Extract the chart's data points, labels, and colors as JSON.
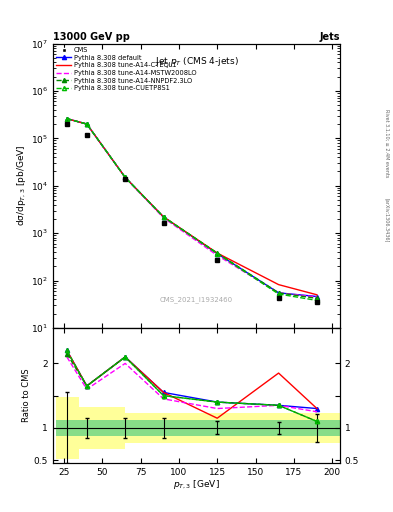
{
  "title_top": "13000 GeV pp",
  "title_right": "Jets",
  "plot_title": "Jet $p_T$ (CMS 4-jets)",
  "watermark": "CMS_2021_I1932460",
  "right_label_top": "Rivet 3.1.10; ≥ 2.4M events",
  "right_label_bot": "[arXiv:1306.3436]",
  "ylabel_main": "dσ/dp$_{T,3}$ [pb/GeV]",
  "ylabel_ratio": "Ratio to CMS",
  "xlabel": "$p_{T,3}$ [GeV]",
  "cms_x": [
    27,
    40,
    65,
    90,
    125,
    165,
    190
  ],
  "cms_y": [
    200000.0,
    120000.0,
    14000.0,
    1600,
    270,
    43,
    35
  ],
  "pt_bins": [
    27,
    40,
    65,
    90,
    125,
    165,
    190
  ],
  "pythia_default_y": [
    260000.0,
    200000.0,
    15000.0,
    2200,
    370,
    55,
    46
  ],
  "pythia_cteql1_y": [
    260000.0,
    200000.0,
    15000.0,
    2200,
    380,
    82,
    50
  ],
  "pythia_mstw_y": [
    260000.0,
    200000.0,
    15000.0,
    2100,
    340,
    55,
    45
  ],
  "pythia_nnpdf_y": [
    260000.0,
    200000.0,
    15000.0,
    2200,
    380,
    55,
    42
  ],
  "pythia_cuetp_y": [
    260000.0,
    200000.0,
    15000.0,
    2200,
    370,
    52,
    38
  ],
  "ratio_x": [
    27,
    40,
    65,
    90,
    125,
    165,
    190
  ],
  "ratio_default": [
    2.2,
    1.65,
    2.1,
    1.55,
    1.4,
    1.35,
    1.3
  ],
  "ratio_cteql1": [
    2.2,
    1.65,
    2.1,
    1.55,
    1.15,
    1.85,
    1.3
  ],
  "ratio_mstw": [
    2.1,
    1.6,
    2.0,
    1.45,
    1.3,
    1.35,
    1.25
  ],
  "ratio_nnpdf": [
    2.15,
    1.65,
    2.1,
    1.5,
    1.4,
    1.35,
    1.1
  ],
  "ratio_cuetp": [
    2.2,
    1.65,
    2.1,
    1.5,
    1.4,
    1.35,
    1.1
  ],
  "cms_err_lo": [
    0.55,
    0.15,
    0.15,
    0.15,
    0.1,
    0.09,
    0.22
  ],
  "cms_err_hi": [
    0.55,
    0.15,
    0.15,
    0.15,
    0.1,
    0.09,
    0.22
  ],
  "band_edges": [
    20,
    35,
    65,
    95,
    125,
    165,
    205
  ],
  "band_yellow_lo": [
    0.52,
    0.67,
    0.77,
    0.77,
    0.77,
    0.77,
    0.77
  ],
  "band_yellow_hi": [
    1.48,
    1.33,
    1.23,
    1.23,
    1.23,
    1.23,
    1.23
  ],
  "band_green_lo": [
    0.87,
    0.87,
    0.87,
    0.87,
    0.87,
    0.87,
    0.87
  ],
  "band_green_hi": [
    1.13,
    1.13,
    1.13,
    1.13,
    1.13,
    1.13,
    1.13
  ],
  "color_cms": "#000000",
  "color_default": "#0000ff",
  "color_cteql1": "#ff0000",
  "color_mstw": "#ff00ff",
  "color_nnpdf": "#008800",
  "color_cuetp": "#00bb00",
  "ylim_main": [
    10,
    10000000.0
  ],
  "ylim_ratio": [
    0.45,
    2.55
  ],
  "xlim": [
    18,
    205
  ]
}
